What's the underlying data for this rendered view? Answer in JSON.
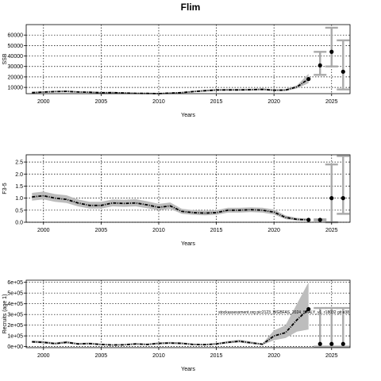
{
  "title": "Flim",
  "colors": {
    "band": "#bdbdbd",
    "line": "#000000",
    "whisker": "#aaaaaa",
    "grid": "#000000"
  },
  "chart_data": [
    {
      "type": "line",
      "panel": "ssb",
      "ylabel": "SSB",
      "xlabel": "Years",
      "xlim": [
        1998.5,
        2026.6
      ],
      "ylim": [
        4000,
        70000
      ],
      "xticks": [
        2000,
        2005,
        2010,
        2015,
        2020,
        2025
      ],
      "yticks": [
        10000,
        20000,
        30000,
        40000,
        50000,
        60000
      ],
      "ytick_labels": [
        "10000",
        "20000",
        "30000",
        "40000",
        "50000",
        "60000"
      ],
      "grid": true,
      "series": [
        {
          "x": [
            1999,
            2000,
            2001,
            2002,
            2003,
            2004,
            2005,
            2006,
            2007,
            2008,
            2009,
            2010,
            2011,
            2012,
            2013,
            2014,
            2015,
            2016,
            2017,
            2018,
            2019,
            2020,
            2021,
            2022,
            2023
          ],
          "y": [
            5000,
            5500,
            6000,
            6200,
            5600,
            5400,
            4900,
            5000,
            4700,
            4300,
            4200,
            4100,
            4500,
            5000,
            6000,
            6800,
            7500,
            7600,
            7600,
            7800,
            8100,
            7300,
            7400,
            10500,
            18000
          ],
          "lower": [
            4300,
            4800,
            5200,
            5400,
            4900,
            4700,
            4300,
            4300,
            4000,
            3700,
            3600,
            3500,
            3900,
            4400,
            5300,
            6000,
            6600,
            6700,
            6700,
            6900,
            7200,
            6400,
            6500,
            9000,
            14000
          ],
          "upper": [
            5800,
            6300,
            6800,
            7000,
            6300,
            6100,
            5600,
            5700,
            5400,
            4900,
            4800,
            4700,
            5100,
            5700,
            6800,
            7700,
            8500,
            8600,
            8600,
            8800,
            9100,
            8200,
            8400,
            12000,
            23000
          ]
        }
      ],
      "projections": [
        {
          "x": 2024,
          "y": 31000,
          "lower": 22000,
          "upper": 44000
        },
        {
          "x": 2025,
          "y": 44000,
          "lower": 30000,
          "upper": 67000
        },
        {
          "x": 2026,
          "y": 25000,
          "lower": 8000,
          "upper": 55000
        }
      ]
    },
    {
      "type": "line",
      "panel": "f",
      "ylabel": "F3-5",
      "xlabel": "Years",
      "xlim": [
        1998.5,
        2026.6
      ],
      "ylim": [
        0,
        2.8
      ],
      "xticks": [
        2000,
        2005,
        2010,
        2015,
        2020,
        2025
      ],
      "yticks": [
        0,
        0.5,
        1,
        1.5,
        2,
        2.5
      ],
      "ytick_labels": [
        "0.0",
        "0.5",
        "1.0",
        "1.5",
        "2.0",
        "2.5"
      ],
      "grid": true,
      "series": [
        {
          "x": [
            1999,
            2000,
            2001,
            2002,
            2003,
            2004,
            2005,
            2006,
            2007,
            2008,
            2009,
            2010,
            2011,
            2012,
            2013,
            2014,
            2015,
            2016,
            2017,
            2018,
            2019,
            2020,
            2021,
            2022,
            2023
          ],
          "y": [
            1.05,
            1.1,
            1.0,
            0.95,
            0.8,
            0.7,
            0.7,
            0.8,
            0.78,
            0.8,
            0.72,
            0.62,
            0.68,
            0.45,
            0.4,
            0.38,
            0.4,
            0.5,
            0.5,
            0.52,
            0.5,
            0.42,
            0.2,
            0.12,
            0.1
          ],
          "lower": [
            0.9,
            0.95,
            0.85,
            0.8,
            0.66,
            0.57,
            0.57,
            0.66,
            0.64,
            0.66,
            0.58,
            0.5,
            0.55,
            0.35,
            0.31,
            0.29,
            0.31,
            0.4,
            0.4,
            0.42,
            0.4,
            0.32,
            0.13,
            0.07,
            0.06
          ],
          "upper": [
            1.22,
            1.27,
            1.17,
            1.12,
            0.95,
            0.85,
            0.85,
            0.95,
            0.93,
            0.96,
            0.87,
            0.76,
            0.82,
            0.56,
            0.5,
            0.48,
            0.5,
            0.6,
            0.6,
            0.62,
            0.6,
            0.53,
            0.28,
            0.18,
            0.15
          ]
        }
      ],
      "projections": [
        {
          "x": 2024,
          "y": 0.1,
          "lower": 0.08,
          "upper": 0.12
        },
        {
          "x": 2025,
          "y": 1.0,
          "lower": 0.0,
          "upper": 2.4
        },
        {
          "x": 2026,
          "y": 1.0,
          "lower": 0.35,
          "upper": 2.75
        }
      ]
    },
    {
      "type": "line",
      "panel": "recruits",
      "ylabel": "Recruits (age 1)",
      "xlabel": "Years",
      "xlim": [
        1998.5,
        2026.6
      ],
      "ylim": [
        -10000,
        620000
      ],
      "xticks": [
        2000,
        2005,
        2010,
        2015,
        2020,
        2025
      ],
      "yticks": [
        0,
        100000,
        200000,
        300000,
        400000,
        500000,
        600000
      ],
      "ytick_labels": [
        "0e+00",
        "1e+05",
        "2e+05",
        "3e+05",
        "4e+05",
        "5e+05",
        "6e+05"
      ],
      "grid": true,
      "annotation": "stockassessment.org pic2123_WGBFAS_2024_SPALY_v1, r18032 git e38",
      "series": [
        {
          "x": [
            1999,
            2000,
            2001,
            2002,
            2003,
            2004,
            2005,
            2006,
            2007,
            2008,
            2009,
            2010,
            2011,
            2012,
            2013,
            2014,
            2015,
            2016,
            2017,
            2018,
            2019,
            2020,
            2021,
            2022,
            2023
          ],
          "y": [
            45000,
            40000,
            28000,
            40000,
            25000,
            28000,
            20000,
            15000,
            17000,
            25000,
            20000,
            30000,
            33000,
            30000,
            20000,
            18000,
            25000,
            40000,
            50000,
            35000,
            22000,
            100000,
            130000,
            250000,
            350000
          ],
          "lower": [
            35000,
            30000,
            20000,
            30000,
            18000,
            20000,
            14000,
            10000,
            12000,
            18000,
            14000,
            22000,
            25000,
            22000,
            14000,
            12000,
            18000,
            30000,
            38000,
            25000,
            15000,
            60000,
            80000,
            140000,
            160000
          ],
          "upper": [
            57000,
            52000,
            38000,
            52000,
            34000,
            38000,
            28000,
            22000,
            24000,
            34000,
            28000,
            40000,
            44000,
            40000,
            28000,
            25000,
            34000,
            52000,
            64000,
            48000,
            30000,
            150000,
            200000,
            400000,
            600000
          ]
        }
      ],
      "projections": [
        {
          "x": 2024,
          "y": 25000,
          "lower": 0,
          "upper": 360000
        },
        {
          "x": 2025,
          "y": 25000,
          "lower": 0,
          "upper": 360000
        },
        {
          "x": 2026,
          "y": 25000,
          "lower": 0,
          "upper": 360000
        }
      ]
    }
  ]
}
